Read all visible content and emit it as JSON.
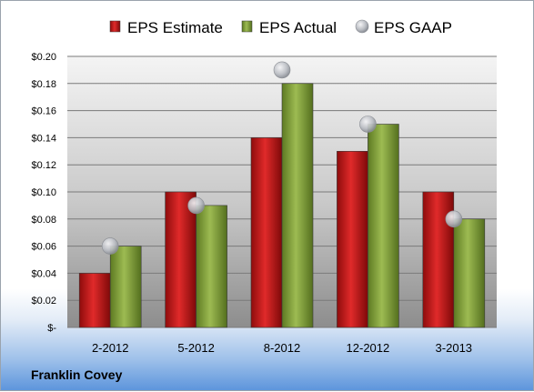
{
  "company": "Franklin Covey",
  "chart_data": {
    "type": "bar",
    "categories": [
      "2-2012",
      "5-2012",
      "8-2012",
      "12-2012",
      "3-2013"
    ],
    "series": [
      {
        "name": "EPS Estimate",
        "kind": "bar",
        "color": "#cc1f1f",
        "values": [
          0.04,
          0.1,
          0.14,
          0.13,
          0.1
        ]
      },
      {
        "name": "EPS Actual",
        "kind": "bar",
        "color": "#7f9e35",
        "values": [
          0.06,
          0.09,
          0.18,
          0.15,
          0.08
        ]
      },
      {
        "name": "EPS GAAP",
        "kind": "marker",
        "color": "#b3b6bc",
        "values": [
          0.06,
          0.09,
          0.19,
          0.15,
          0.08
        ]
      }
    ],
    "y_ticks": [
      "$-",
      "$0.02",
      "$0.04",
      "$0.06",
      "$0.08",
      "$0.10",
      "$0.12",
      "$0.14",
      "$0.16",
      "$0.18",
      "$0.20"
    ],
    "ylim": [
      0,
      0.2
    ],
    "grid": true,
    "legend_position": "top"
  }
}
